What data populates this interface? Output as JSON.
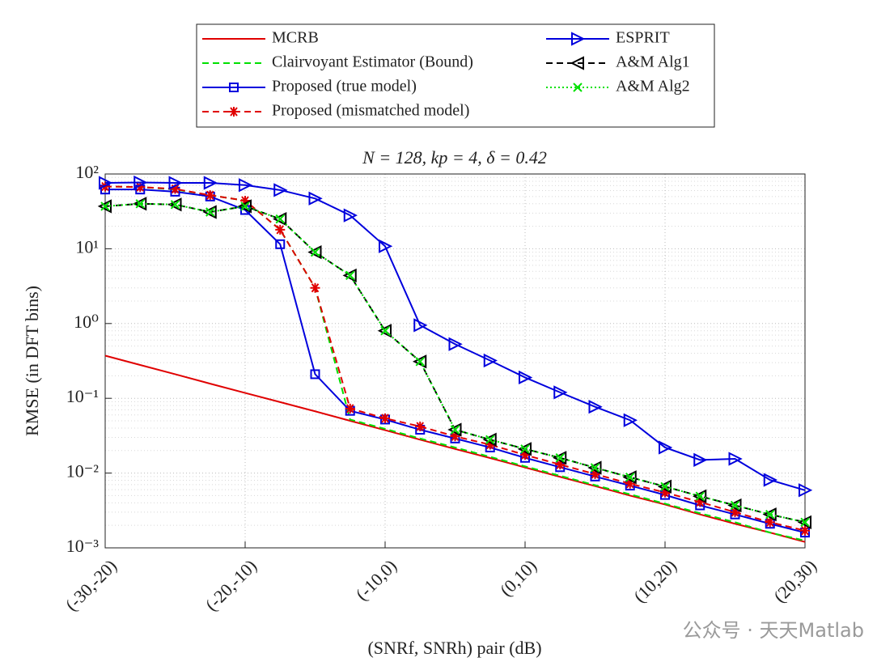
{
  "chart_data": {
    "type": "line",
    "title": "N = 128, kp = 4, δ = 0.42",
    "xlabel": "(SNRf, SNRh) pair (dB)",
    "ylabel": "RMSE (in DFT bins)",
    "watermark": "公众号 · 天天Matlab",
    "log_y": true,
    "grid": true,
    "x": [
      -30,
      -27.5,
      -25,
      -22.5,
      -20,
      -17.5,
      -15,
      -12.5,
      -10,
      -7.5,
      -5,
      -2.5,
      0,
      2.5,
      5,
      7.5,
      10,
      12.5,
      15,
      17.5,
      20
    ],
    "xlim": [
      -30,
      20
    ],
    "xticks": [
      {
        "value": -30,
        "label": "(-30,-20)"
      },
      {
        "value": -20,
        "label": "(-20,-10)"
      },
      {
        "value": -10,
        "label": "(-10,0)"
      },
      {
        "value": 0,
        "label": "(0,10)"
      },
      {
        "value": 10,
        "label": "(10,20)"
      },
      {
        "value": 20,
        "label": "(20,30)"
      }
    ],
    "ylim": [
      0.001,
      100
    ],
    "yticks": [
      {
        "value": 0.001,
        "label": "10⁻³"
      },
      {
        "value": 0.01,
        "label": "10⁻²"
      },
      {
        "value": 0.1,
        "label": "10⁻¹"
      },
      {
        "value": 1,
        "label": "10⁰"
      },
      {
        "value": 10,
        "label": "10¹"
      },
      {
        "value": 100,
        "label": "10²"
      }
    ],
    "series": [
      {
        "name": "MCRB",
        "color": "#e00000",
        "linestyle": "solid",
        "marker": "none",
        "values": [
          0.372,
          0.279,
          0.21,
          0.157,
          0.118,
          0.089,
          0.067,
          0.05,
          0.0375,
          0.028,
          0.021,
          0.0159,
          0.0119,
          0.0089,
          0.0067,
          0.005,
          0.0038,
          0.0028,
          0.0021,
          0.0016,
          0.0012
        ]
      },
      {
        "name": "Clairvoyant Estimator (Bound)",
        "color": "#00e000",
        "linestyle": "dashed",
        "marker": "none",
        "values": [
          68,
          67,
          62,
          52,
          44,
          18,
          3.0,
          0.052,
          0.039,
          0.029,
          0.022,
          0.0165,
          0.0123,
          0.0092,
          0.0069,
          0.0052,
          0.0039,
          0.0029,
          0.0022,
          0.0016,
          0.00125
        ]
      },
      {
        "name": "Proposed (true model)",
        "color": "#0000dd",
        "linestyle": "solid",
        "marker": "square",
        "values": [
          62,
          62,
          58,
          50,
          33,
          11.5,
          0.21,
          0.068,
          0.052,
          0.038,
          0.029,
          0.022,
          0.016,
          0.012,
          0.009,
          0.0068,
          0.0051,
          0.0037,
          0.0028,
          0.0021,
          0.0016
        ]
      },
      {
        "name": "Proposed (mismatched model)",
        "color": "#e00000",
        "linestyle": "dashed",
        "marker": "asterisk",
        "values": [
          68,
          67,
          63,
          52,
          44,
          18,
          3.0,
          0.073,
          0.054,
          0.042,
          0.031,
          0.024,
          0.0175,
          0.013,
          0.0097,
          0.0072,
          0.0055,
          0.0041,
          0.003,
          0.0022,
          0.0017
        ]
      },
      {
        "name": "ESPRIT",
        "color": "#0000dd",
        "linestyle": "solid",
        "marker": "triangle-right",
        "values": [
          76,
          77,
          76,
          76,
          71,
          61,
          47,
          28,
          10.8,
          0.95,
          0.53,
          0.32,
          0.19,
          0.12,
          0.077,
          0.051,
          0.022,
          0.015,
          0.0155,
          0.0081,
          0.0059
        ]
      },
      {
        "name": "A&M Alg1",
        "color": "#000000",
        "linestyle": "dashed",
        "marker": "triangle-left",
        "values": [
          37,
          40,
          39,
          31,
          37,
          25,
          9,
          4.4,
          0.8,
          0.31,
          0.038,
          0.028,
          0.021,
          0.016,
          0.0118,
          0.0088,
          0.0066,
          0.0049,
          0.0037,
          0.0028,
          0.0022
        ]
      },
      {
        "name": "A&M Alg2",
        "color": "#00e000",
        "linestyle": "dotted",
        "marker": "x",
        "values": [
          37,
          40,
          39,
          31,
          37,
          25,
          9,
          4.4,
          0.8,
          0.31,
          0.038,
          0.028,
          0.021,
          0.016,
          0.0118,
          0.0088,
          0.0066,
          0.0049,
          0.0037,
          0.0028,
          0.0022
        ]
      }
    ]
  }
}
